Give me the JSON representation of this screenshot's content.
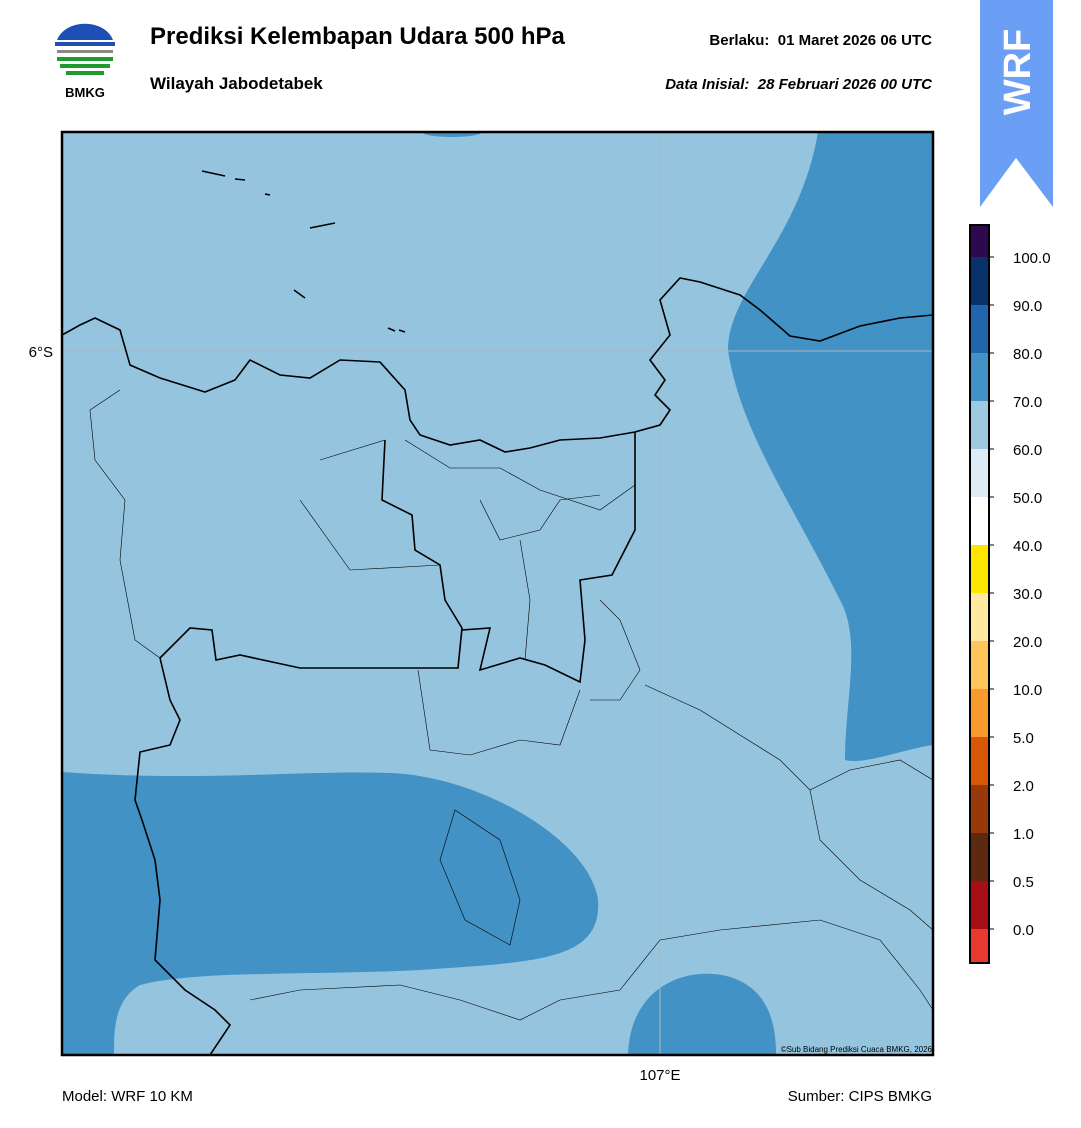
{
  "header": {
    "logo_text": "BMKG",
    "title": "Prediksi Kelembapan Udara 500 hPa",
    "subtitle": "Wilayah Jabodetabek",
    "valid": "Berlaku:  01 Maret 2026 06 UTC",
    "init": "Data Inisial:  28 Februari 2026 00 UTC",
    "badge": "WRF"
  },
  "map": {
    "lat_label": "6°S",
    "lon_label": "107°E",
    "credit": "©Sub Bidang Prediksi Cuaca BMKG, 2026"
  },
  "colorbar": {
    "colors": [
      "#e8392e",
      "#a50f15",
      "#5c2a10",
      "#993808",
      "#d95808",
      "#f99a2c",
      "#ffc55a",
      "#ffe8a0",
      "#ffe600",
      "#ffffff",
      "#deebf7",
      "#9ecae1",
      "#4292c6",
      "#2166ac",
      "#08306b",
      "#2d0a4e"
    ],
    "labels": [
      "0.0",
      "0.5",
      "1.0",
      "2.0",
      "5.0",
      "10.0",
      "20.0",
      "30.0",
      "40.0",
      "50.0",
      "60.0",
      "70.0",
      "80.0",
      "90.0",
      "100.0"
    ]
  },
  "footer": {
    "model": "Model: WRF 10 KM",
    "source": "Sumber: CIPS BMKG"
  }
}
